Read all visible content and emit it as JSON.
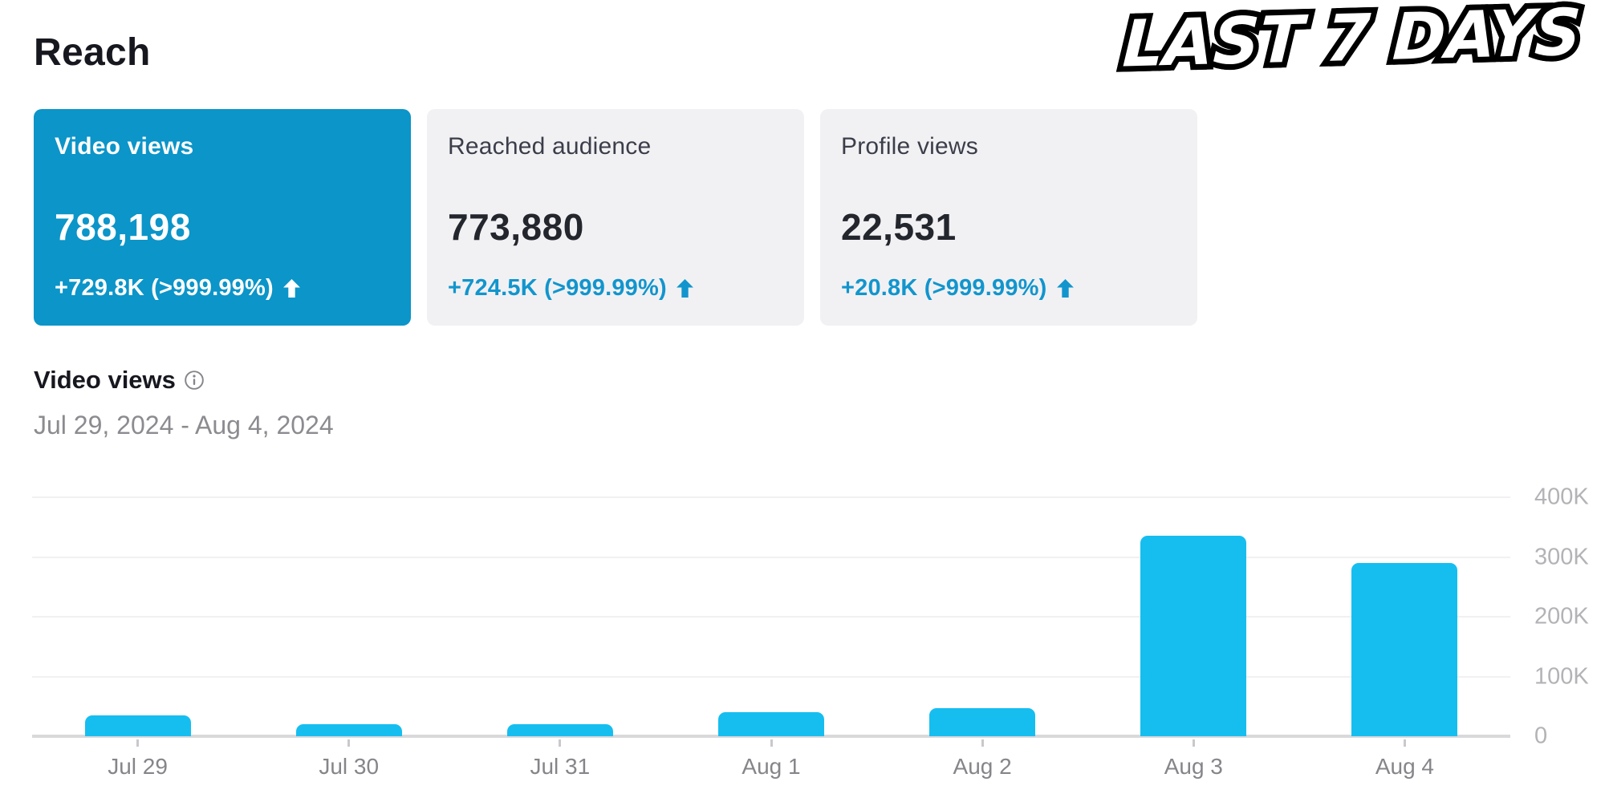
{
  "page": {
    "title": "Reach",
    "badge": "LAST 7 DAYS"
  },
  "cards": [
    {
      "title": "Video views",
      "value": "788,198",
      "change": "+729.8K  (>999.99%)",
      "trend": "up",
      "selected": true
    },
    {
      "title": "Reached audience",
      "value": "773,880",
      "change": "+724.5K  (>999.99%)",
      "trend": "up",
      "selected": false
    },
    {
      "title": "Profile views",
      "value": "22,531",
      "change": "+20.8K  (>999.99%)",
      "trend": "up",
      "selected": false
    }
  ],
  "section": {
    "title": "Video views",
    "info_icon": "info-icon",
    "date_range": "Jul 29, 2024 - Aug 4, 2024"
  },
  "colors": {
    "accent_blue": "#0b95c9",
    "bar_cyan": "#16bef0",
    "change_blue": "#1295cd",
    "axis_label_gray": "#b3b3b7",
    "x_label_gray": "#85858a",
    "card_gray": "#f1f1f3"
  },
  "chart_data": {
    "type": "bar",
    "title": "Video views",
    "subtitle": "Jul 29, 2024 - Aug 4, 2024",
    "categories": [
      "Jul 29",
      "Jul 30",
      "Jul 31",
      "Aug 1",
      "Aug 2",
      "Aug 3",
      "Aug 4"
    ],
    "values": [
      35000,
      20000,
      20000,
      40000,
      47000,
      336000,
      290000
    ],
    "xlabel": "",
    "ylabel": "",
    "ylim": [
      0,
      400000
    ],
    "yticks": [
      400000,
      300000,
      200000,
      100000,
      0
    ],
    "ytick_labels": [
      "400K",
      "300K",
      "200K",
      "100K",
      "0"
    ],
    "grid": "horizontal",
    "legend": "none",
    "bar_color": "#16bef0"
  }
}
